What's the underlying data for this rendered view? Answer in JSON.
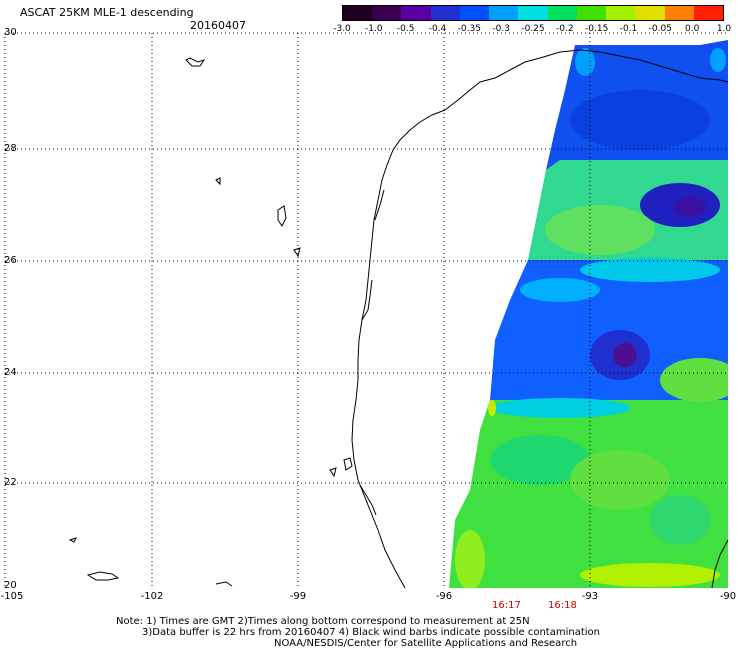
{
  "header": {
    "title": "ASCAT 25KM MLE-1 descending",
    "date": "20160407"
  },
  "color_scale": {
    "labels": [
      "-3.0",
      "-1.0",
      "-0.5",
      "-0.4",
      "-0.35",
      "-0.3",
      "-0.25",
      "-0.2",
      "-0.15",
      "-0.1",
      "-0.05",
      "0.0",
      "1.0"
    ],
    "colors": [
      "#200020",
      "#3a0050",
      "#5a00a0",
      "#2030d0",
      "#0050ff",
      "#00a0ff",
      "#00e0e0",
      "#00e060",
      "#40e000",
      "#a0f000",
      "#e0e000",
      "#ff8000",
      "#ff2000"
    ]
  },
  "axes": {
    "y_labels": [
      "30",
      "28",
      "26",
      "24",
      "22",
      "20"
    ],
    "x_labels": [
      "-105",
      "-102",
      "-99",
      "-96",
      "-93",
      "-90"
    ]
  },
  "times": {
    "t1": "16:17",
    "t2": "16:18"
  },
  "notes": {
    "line1": "Note: 1) Times are GMT 2)Times along bottom correspond to measurement at 25N",
    "line2": "3)Data buffer is 22 hrs from 20160407 4) Black wind barbs indicate possible contamination",
    "line3": "NOAA/NESDIS/Center for Satellite Applications and Research"
  }
}
